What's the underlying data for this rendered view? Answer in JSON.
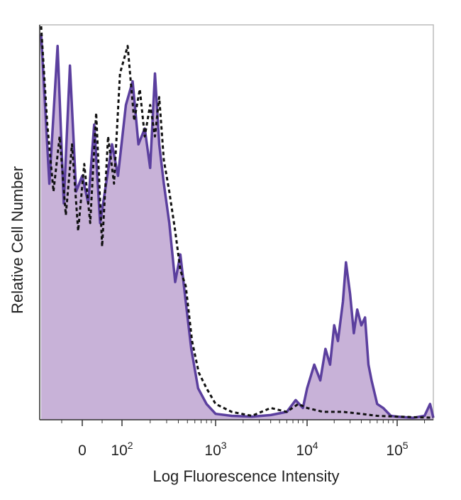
{
  "chart_data": {
    "type": "area",
    "xlabel": "Log Fluorescence Intensity",
    "ylabel": "Relative Cell Number",
    "x_scale": "biexponential",
    "xlim": [
      -100,
      250000
    ],
    "ylim": [
      0,
      100
    ],
    "grid": false,
    "legend": "none",
    "x_ticks": [
      {
        "value": 0,
        "base": "0",
        "exp": ""
      },
      {
        "value": 100,
        "base": "10",
        "exp": "2"
      },
      {
        "value": 1000,
        "base": "10",
        "exp": "3"
      },
      {
        "value": 10000,
        "base": "10",
        "exp": "4"
      },
      {
        "value": 100000,
        "base": "10",
        "exp": "5"
      }
    ],
    "series": [
      {
        "style": "filled-solid",
        "color": "#5b3f9e",
        "fill": "#c8b2d8",
        "points": [
          [
            -100,
            98
          ],
          [
            -80,
            60
          ],
          [
            -60,
            95
          ],
          [
            -45,
            55
          ],
          [
            -30,
            90
          ],
          [
            -15,
            58
          ],
          [
            0,
            62
          ],
          [
            15,
            55
          ],
          [
            30,
            75
          ],
          [
            45,
            50
          ],
          [
            60,
            60
          ],
          [
            75,
            70
          ],
          [
            90,
            62
          ],
          [
            110,
            80
          ],
          [
            130,
            86
          ],
          [
            150,
            70
          ],
          [
            175,
            74
          ],
          [
            200,
            64
          ],
          [
            225,
            88
          ],
          [
            250,
            70
          ],
          [
            280,
            60
          ],
          [
            320,
            50
          ],
          [
            370,
            35
          ],
          [
            420,
            42
          ],
          [
            480,
            30
          ],
          [
            550,
            18
          ],
          [
            650,
            8
          ],
          [
            800,
            4
          ],
          [
            1000,
            1.5
          ],
          [
            1500,
            1
          ],
          [
            2500,
            0.8
          ],
          [
            4000,
            1.2
          ],
          [
            6000,
            2
          ],
          [
            7500,
            5
          ],
          [
            9000,
            3
          ],
          [
            10000,
            8
          ],
          [
            12000,
            14
          ],
          [
            14000,
            10
          ],
          [
            16000,
            18
          ],
          [
            18000,
            14
          ],
          [
            20000,
            24
          ],
          [
            22000,
            20
          ],
          [
            25000,
            30
          ],
          [
            27000,
            40
          ],
          [
            30000,
            32
          ],
          [
            33000,
            22
          ],
          [
            36000,
            28
          ],
          [
            40000,
            24
          ],
          [
            44000,
            26
          ],
          [
            48000,
            14
          ],
          [
            52000,
            10
          ],
          [
            60000,
            4
          ],
          [
            70000,
            3
          ],
          [
            85000,
            1
          ],
          [
            100000,
            0.8
          ],
          [
            150000,
            0.5
          ],
          [
            200000,
            1
          ],
          [
            230000,
            4
          ],
          [
            250000,
            0.5
          ]
        ]
      },
      {
        "style": "dashed-outline",
        "color": "#111111",
        "points": [
          [
            -100,
            100
          ],
          [
            -85,
            75
          ],
          [
            -70,
            58
          ],
          [
            -55,
            72
          ],
          [
            -40,
            52
          ],
          [
            -25,
            70
          ],
          [
            -10,
            48
          ],
          [
            5,
            65
          ],
          [
            20,
            50
          ],
          [
            35,
            78
          ],
          [
            50,
            44
          ],
          [
            65,
            72
          ],
          [
            80,
            60
          ],
          [
            95,
            88
          ],
          [
            115,
            95
          ],
          [
            135,
            76
          ],
          [
            155,
            84
          ],
          [
            175,
            72
          ],
          [
            200,
            80
          ],
          [
            225,
            72
          ],
          [
            250,
            82
          ],
          [
            280,
            66
          ],
          [
            320,
            58
          ],
          [
            370,
            48
          ],
          [
            420,
            38
          ],
          [
            480,
            34
          ],
          [
            560,
            20
          ],
          [
            660,
            12
          ],
          [
            800,
            8
          ],
          [
            1000,
            4
          ],
          [
            1500,
            2
          ],
          [
            2500,
            1
          ],
          [
            4000,
            3
          ],
          [
            6000,
            2
          ],
          [
            8000,
            4
          ],
          [
            10000,
            3
          ],
          [
            15000,
            2
          ],
          [
            25000,
            2
          ],
          [
            40000,
            1.5
          ],
          [
            60000,
            1
          ],
          [
            100000,
            0.8
          ],
          [
            250000,
            0.5
          ]
        ]
      }
    ]
  }
}
